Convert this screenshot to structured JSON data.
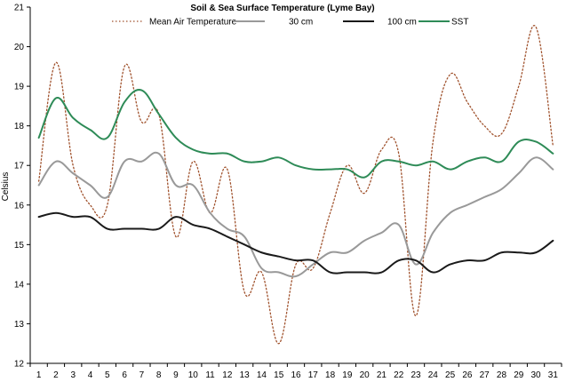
{
  "chart_data": {
    "type": "line",
    "title": "Soil & Sea Surface Temperature (Lyme Bay)",
    "xlabel": "",
    "ylabel": "Celsius",
    "ylim": [
      12,
      21
    ],
    "yticks": [
      12,
      13,
      14,
      15,
      16,
      17,
      18,
      19,
      20,
      21
    ],
    "x": [
      1,
      2,
      3,
      4,
      5,
      6,
      7,
      8,
      9,
      10,
      11,
      12,
      13,
      14,
      15,
      16,
      17,
      18,
      19,
      20,
      21,
      22,
      23,
      24,
      25,
      26,
      27,
      28,
      29,
      30,
      31
    ],
    "grid": false,
    "legend_position": "top",
    "series": [
      {
        "name": "Mean Air Temperature",
        "color": "#a0522d",
        "style": "dotted",
        "values": [
          16.6,
          19.6,
          17.0,
          16.0,
          16.0,
          19.5,
          18.1,
          18.3,
          15.2,
          17.1,
          15.8,
          16.9,
          13.8,
          14.3,
          12.5,
          14.5,
          14.4,
          15.8,
          17.0,
          16.3,
          17.4,
          17.3,
          13.2,
          17.6,
          19.3,
          18.6,
          18.0,
          17.8,
          19.0,
          20.5,
          17.5
        ]
      },
      {
        "name": "30 cm",
        "color": "#999999",
        "style": "solid",
        "values": [
          16.5,
          17.1,
          16.8,
          16.5,
          16.2,
          17.1,
          17.1,
          17.3,
          16.5,
          16.5,
          15.8,
          15.4,
          15.2,
          14.4,
          14.3,
          14.2,
          14.5,
          14.8,
          14.8,
          15.1,
          15.3,
          15.5,
          14.5,
          15.3,
          15.8,
          16.0,
          16.2,
          16.4,
          16.8,
          17.2,
          16.9
        ]
      },
      {
        "name": "100 cm",
        "color": "#1a1a1a",
        "style": "solid",
        "values": [
          15.7,
          15.8,
          15.7,
          15.7,
          15.4,
          15.4,
          15.4,
          15.4,
          15.7,
          15.5,
          15.4,
          15.2,
          15.0,
          14.8,
          14.7,
          14.6,
          14.6,
          14.3,
          14.3,
          14.3,
          14.3,
          14.6,
          14.6,
          14.3,
          14.5,
          14.6,
          14.6,
          14.8,
          14.8,
          14.8,
          15.1
        ]
      },
      {
        "name": "SST",
        "color": "#2e8b57",
        "style": "solid",
        "values": [
          17.7,
          18.7,
          18.2,
          17.9,
          17.7,
          18.6,
          18.9,
          18.3,
          17.7,
          17.4,
          17.3,
          17.3,
          17.1,
          17.1,
          17.2,
          17.0,
          16.9,
          16.9,
          16.9,
          16.7,
          17.1,
          17.1,
          17.0,
          17.1,
          16.9,
          17.1,
          17.2,
          17.1,
          17.6,
          17.6,
          17.3
        ]
      }
    ]
  }
}
